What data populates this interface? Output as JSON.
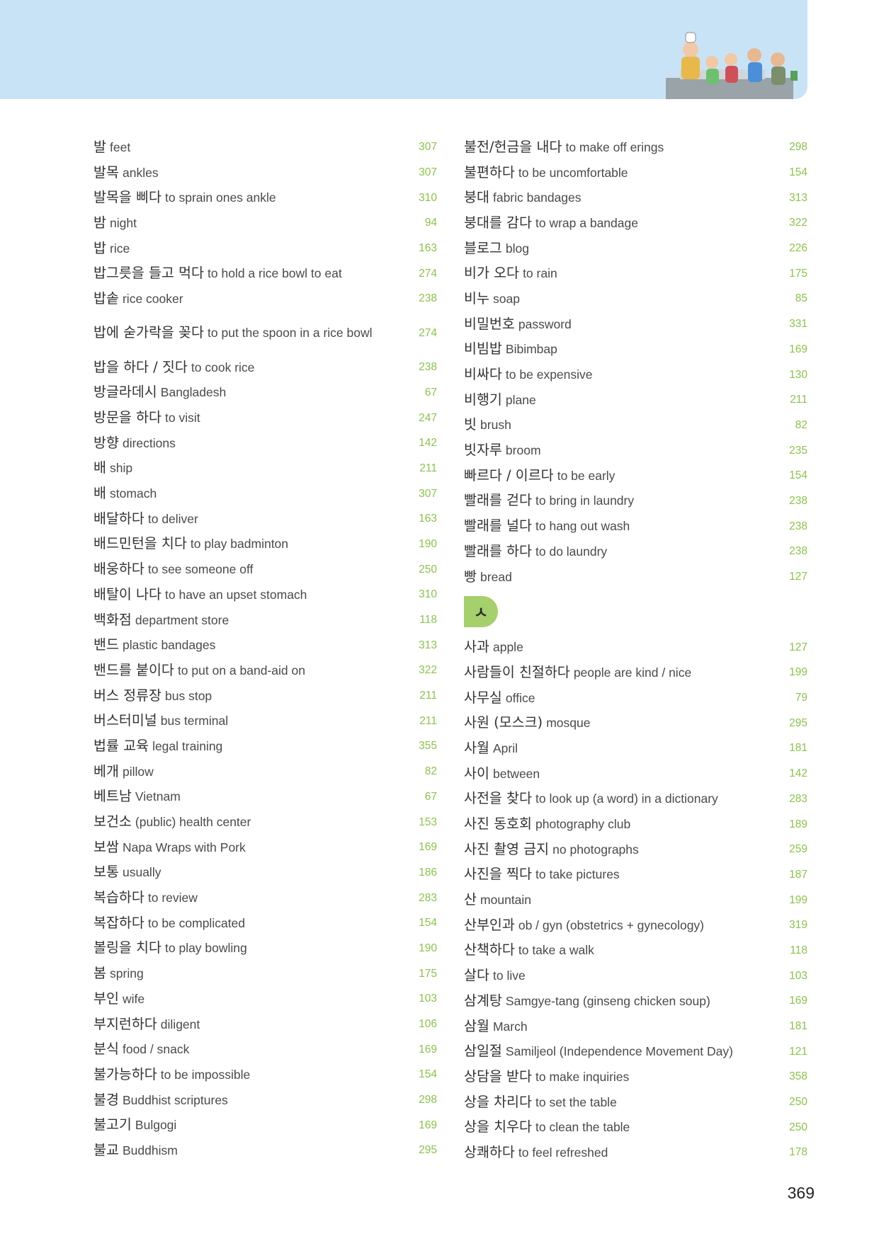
{
  "left_entries": [
    {
      "ko": "발",
      "en": "feet",
      "page": "307"
    },
    {
      "ko": "발목",
      "en": "ankles",
      "page": "307"
    },
    {
      "ko": "발목을 삐다",
      "en": "to sprain ones ankle",
      "page": "310"
    },
    {
      "ko": "밤",
      "en": "night",
      "page": "94"
    },
    {
      "ko": "밥",
      "en": "rice",
      "page": "163"
    },
    {
      "ko": "밥그릇을 들고 먹다",
      "en": "to hold a rice bowl to eat",
      "page": "274"
    },
    {
      "ko": "밥솥",
      "en": "rice cooker",
      "page": "238"
    },
    {
      "ko": "밥에 숟가락을 꽂다",
      "en": "to put the spoon in a rice bowl",
      "page": "274"
    },
    {
      "ko": "밥을 하다 / 짓다",
      "en": "to cook rice",
      "page": "238"
    },
    {
      "ko": "방글라데시",
      "en": "Bangladesh",
      "page": "67"
    },
    {
      "ko": "방문을 하다",
      "en": "to visit",
      "page": "247"
    },
    {
      "ko": "방향",
      "en": "directions",
      "page": "142"
    },
    {
      "ko": "배",
      "en": "ship",
      "page": "211"
    },
    {
      "ko": "배",
      "en": "stomach",
      "page": "307"
    },
    {
      "ko": "배달하다",
      "en": "to deliver",
      "page": "163"
    },
    {
      "ko": "배드민턴을 치다",
      "en": "to play badminton",
      "page": "190"
    },
    {
      "ko": "배웅하다",
      "en": "to see someone off",
      "page": "250"
    },
    {
      "ko": "배탈이 나다",
      "en": "to have an upset stomach",
      "page": "310"
    },
    {
      "ko": "백화점",
      "en": "department store",
      "page": "118"
    },
    {
      "ko": "밴드",
      "en": "plastic bandages",
      "page": "313"
    },
    {
      "ko": "밴드를 붙이다",
      "en": "to put on a band-aid on",
      "page": "322"
    },
    {
      "ko": "버스 정류장",
      "en": "bus stop",
      "page": "211"
    },
    {
      "ko": "버스터미널",
      "en": "bus terminal",
      "page": "211"
    },
    {
      "ko": "법률 교육",
      "en": "legal training",
      "page": "355"
    },
    {
      "ko": "베개",
      "en": "pillow",
      "page": "82"
    },
    {
      "ko": "베트남",
      "en": "Vietnam",
      "page": "67"
    },
    {
      "ko": "보건소",
      "en": "(public) health center",
      "page": "153"
    },
    {
      "ko": "보쌈",
      "en": "Napa Wraps with Pork",
      "page": "169"
    },
    {
      "ko": "보통",
      "en": "usually",
      "page": "186"
    },
    {
      "ko": "복습하다",
      "en": "to review",
      "page": "283"
    },
    {
      "ko": "복잡하다",
      "en": "to be complicated",
      "page": "154"
    },
    {
      "ko": "볼링을 치다",
      "en": "to play bowling",
      "page": "190"
    },
    {
      "ko": "봄",
      "en": "spring",
      "page": "175"
    },
    {
      "ko": "부인",
      "en": "wife",
      "page": "103"
    },
    {
      "ko": "부지런하다",
      "en": "diligent",
      "page": "106"
    },
    {
      "ko": "분식",
      "en": "food / snack",
      "page": "169"
    },
    {
      "ko": "불가능하다",
      "en": "to be impossible",
      "page": "154"
    },
    {
      "ko": "불경",
      "en": "Buddhist scriptures",
      "page": "298"
    },
    {
      "ko": "불고기",
      "en": "Bulgogi",
      "page": "169"
    },
    {
      "ko": "불교",
      "en": "Buddhism",
      "page": "295"
    }
  ],
  "right_entries_top": [
    {
      "ko": "불전/헌금을 내다",
      "en": "to make off erings",
      "page": "298"
    },
    {
      "ko": "불편하다",
      "en": "to be uncomfortable",
      "page": "154"
    },
    {
      "ko": "붕대",
      "en": "fabric bandages",
      "page": "313"
    },
    {
      "ko": "붕대를 감다",
      "en": "to wrap a bandage",
      "page": "322"
    },
    {
      "ko": "블로그",
      "en": "blog",
      "page": "226"
    },
    {
      "ko": "비가 오다",
      "en": "to rain",
      "page": "175"
    },
    {
      "ko": "비누",
      "en": "soap",
      "page": "85"
    },
    {
      "ko": "비밀번호",
      "en": "password",
      "page": "331"
    },
    {
      "ko": "비빔밥",
      "en": "Bibimbap",
      "page": "169"
    },
    {
      "ko": "비싸다",
      "en": "to be expensive",
      "page": "130"
    },
    {
      "ko": "비행기",
      "en": "plane",
      "page": "211"
    },
    {
      "ko": "빗",
      "en": "brush",
      "page": "82"
    },
    {
      "ko": "빗자루",
      "en": "broom",
      "page": "235"
    },
    {
      "ko": "빠르다 / 이르다",
      "en": "to be early",
      "page": "154"
    },
    {
      "ko": "빨래를 걷다",
      "en": "to bring in laundry",
      "page": "238"
    },
    {
      "ko": "빨래를 널다",
      "en": "to hang out wash",
      "page": "238"
    },
    {
      "ko": "빨래를 하다",
      "en": "to do laundry",
      "page": "238"
    },
    {
      "ko": "빵",
      "en": "bread",
      "page": "127"
    }
  ],
  "section_letter": "ㅅ",
  "right_entries_bottom": [
    {
      "ko": "사과",
      "en": "apple",
      "page": "127"
    },
    {
      "ko": "사람들이 친절하다",
      "en": "people are kind / nice",
      "page": "199"
    },
    {
      "ko": "사무실",
      "en": "office",
      "page": "79"
    },
    {
      "ko": "사원 (모스크)",
      "en": "mosque",
      "page": "295"
    },
    {
      "ko": "사월",
      "en": "April",
      "page": "181"
    },
    {
      "ko": "사이",
      "en": "between",
      "page": "142"
    },
    {
      "ko": "사전을 찾다",
      "en": "to look up (a word) in a dictionary",
      "page": "283"
    },
    {
      "ko": "사진 동호회",
      "en": "photography club",
      "page": "189"
    },
    {
      "ko": "사진 촬영 금지",
      "en": "no photographs",
      "page": "259"
    },
    {
      "ko": "사진을 찍다",
      "en": "to take pictures",
      "page": "187"
    },
    {
      "ko": "산",
      "en": "mountain",
      "page": "199"
    },
    {
      "ko": "산부인과",
      "en": "ob / gyn (obstetrics + gynecology)",
      "page": "319"
    },
    {
      "ko": "산책하다",
      "en": "to take a walk",
      "page": "118"
    },
    {
      "ko": "살다",
      "en": "to live",
      "page": "103"
    },
    {
      "ko": "삼계탕",
      "en": "Samgye-tang (ginseng chicken soup)",
      "page": "169"
    },
    {
      "ko": "삼월",
      "en": "March",
      "page": "181"
    },
    {
      "ko": "삼일절",
      "en": "Samiljeol (Independence Movement Day)",
      "page": "121"
    },
    {
      "ko": "상담을 받다",
      "en": "to make inquiries",
      "page": "358"
    },
    {
      "ko": "상을 차리다",
      "en": "to set the table",
      "page": "250"
    },
    {
      "ko": "상을 치우다",
      "en": "to clean the table",
      "page": "250"
    },
    {
      "ko": "상쾌하다",
      "en": "to feel refreshed",
      "page": "178"
    }
  ],
  "page_number": "369",
  "colors": {
    "header": "#c9e3f6",
    "accent": "#8bc34a",
    "badge": "#a6d06b"
  }
}
